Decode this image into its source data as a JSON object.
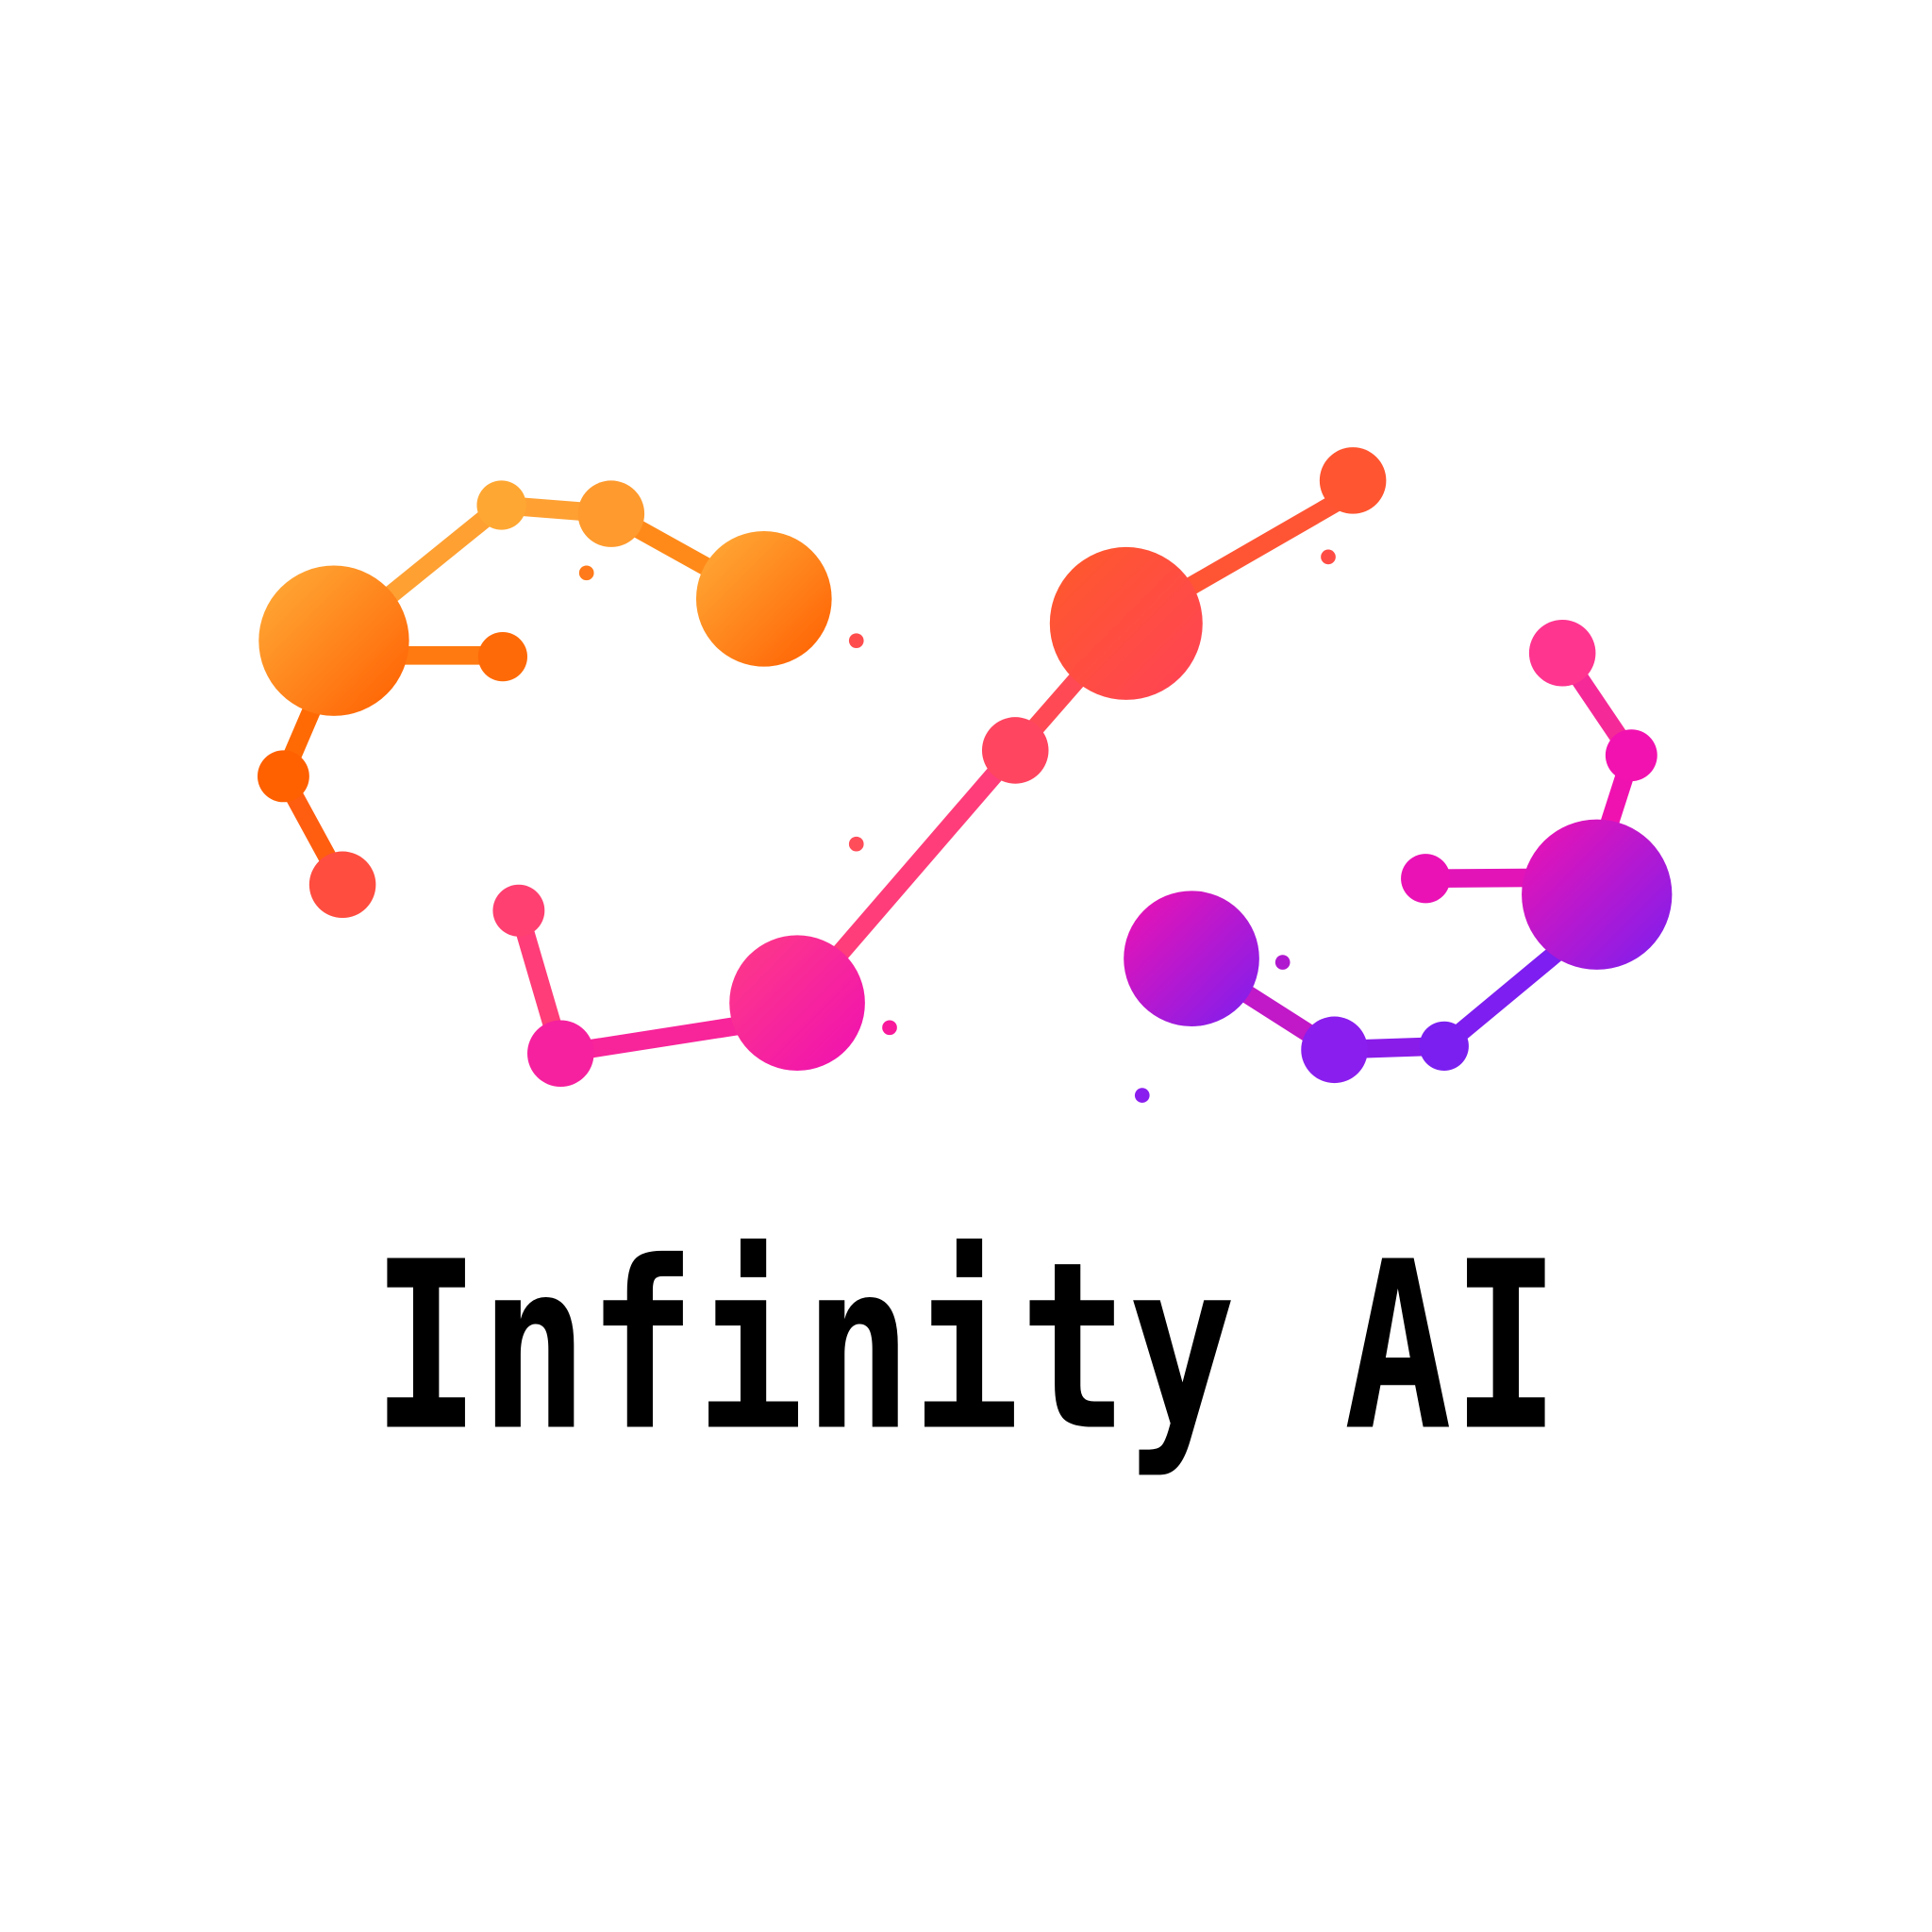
{
  "logo": {
    "text": "Infinity AI"
  }
}
